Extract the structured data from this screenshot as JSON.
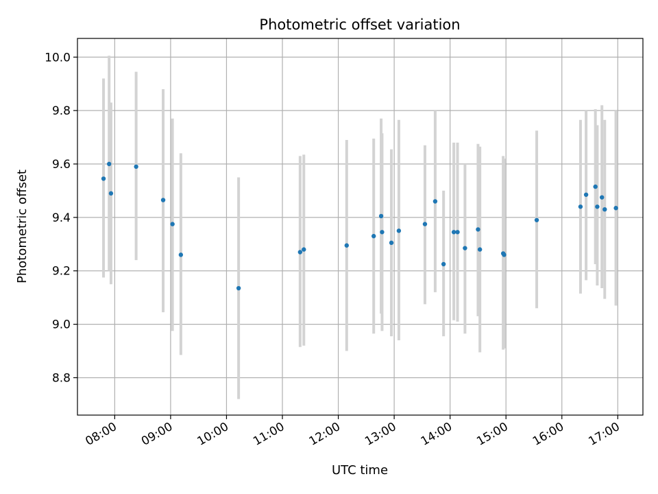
{
  "chart_data": {
    "type": "scatter",
    "title": "Photometric offset variation",
    "xlabel": "UTC time",
    "ylabel": "Photometric offset",
    "x_tick_labels": [
      "08:00",
      "09:00",
      "10:00",
      "11:00",
      "12:00",
      "13:00",
      "14:00",
      "15:00",
      "16:00",
      "17:00"
    ],
    "y_tick_labels": [
      "8.8",
      "9.0",
      "9.2",
      "9.4",
      "9.6",
      "9.8",
      "10.0"
    ],
    "y_ticks": [
      8.8,
      9.0,
      9.2,
      9.4,
      9.6,
      9.8,
      10.0
    ],
    "xlim": [
      "07:20",
      "17:27"
    ],
    "ylim": [
      8.66,
      10.07
    ],
    "grid": true,
    "point_color": "#1f77b4",
    "errorbar_color": "#d3d3d3",
    "series": [
      {
        "points": [
          {
            "t": "07:48",
            "y": 9.545,
            "lo": 9.175,
            "hi": 9.92
          },
          {
            "t": "07:54",
            "y": 9.6,
            "lo": 9.2,
            "hi": 10.005
          },
          {
            "t": "07:56",
            "y": 9.49,
            "lo": 9.15,
            "hi": 9.83
          },
          {
            "t": "08:23",
            "y": 9.59,
            "lo": 9.24,
            "hi": 9.945
          },
          {
            "t": "08:52",
            "y": 9.465,
            "lo": 9.045,
            "hi": 9.88
          },
          {
            "t": "09:02",
            "y": 9.375,
            "lo": 8.975,
            "hi": 9.77
          },
          {
            "t": "09:11",
            "y": 9.26,
            "lo": 8.885,
            "hi": 9.64
          },
          {
            "t": "10:13",
            "y": 9.135,
            "lo": 8.72,
            "hi": 9.55
          },
          {
            "t": "11:19",
            "y": 9.27,
            "lo": 8.915,
            "hi": 9.63
          },
          {
            "t": "11:23",
            "y": 9.28,
            "lo": 8.92,
            "hi": 9.635
          },
          {
            "t": "12:09",
            "y": 9.295,
            "lo": 8.9,
            "hi": 9.69
          },
          {
            "t": "12:38",
            "y": 9.33,
            "lo": 8.965,
            "hi": 9.695
          },
          {
            "t": "12:46",
            "y": 9.405,
            "lo": 9.04,
            "hi": 9.77
          },
          {
            "t": "12:47",
            "y": 9.345,
            "lo": 8.975,
            "hi": 9.715
          },
          {
            "t": "12:57",
            "y": 9.305,
            "lo": 8.955,
            "hi": 9.655
          },
          {
            "t": "13:05",
            "y": 9.35,
            "lo": 8.94,
            "hi": 9.765
          },
          {
            "t": "13:33",
            "y": 9.375,
            "lo": 9.075,
            "hi": 9.67
          },
          {
            "t": "13:44",
            "y": 9.46,
            "lo": 9.12,
            "hi": 9.8
          },
          {
            "t": "13:53",
            "y": 9.225,
            "lo": 8.955,
            "hi": 9.5
          },
          {
            "t": "14:04",
            "y": 9.345,
            "lo": 9.015,
            "hi": 9.68
          },
          {
            "t": "14:08",
            "y": 9.345,
            "lo": 9.01,
            "hi": 9.68
          },
          {
            "t": "14:16",
            "y": 9.285,
            "lo": 8.965,
            "hi": 9.6
          },
          {
            "t": "14:30",
            "y": 9.355,
            "lo": 9.03,
            "hi": 9.675
          },
          {
            "t": "14:32",
            "y": 9.28,
            "lo": 8.895,
            "hi": 9.665
          },
          {
            "t": "14:57",
            "y": 9.265,
            "lo": 8.905,
            "hi": 9.63
          },
          {
            "t": "14:58",
            "y": 9.26,
            "lo": 8.91,
            "hi": 9.62
          },
          {
            "t": "15:33",
            "y": 9.39,
            "lo": 9.06,
            "hi": 9.725
          },
          {
            "t": "16:20",
            "y": 9.44,
            "lo": 9.115,
            "hi": 9.765
          },
          {
            "t": "16:26",
            "y": 9.485,
            "lo": 9.165,
            "hi": 9.8
          },
          {
            "t": "16:36",
            "y": 9.515,
            "lo": 9.225,
            "hi": 9.805
          },
          {
            "t": "16:38",
            "y": 9.44,
            "lo": 9.145,
            "hi": 9.745
          },
          {
            "t": "16:43",
            "y": 9.475,
            "lo": 9.135,
            "hi": 9.82
          },
          {
            "t": "16:46",
            "y": 9.43,
            "lo": 9.095,
            "hi": 9.765
          },
          {
            "t": "16:58",
            "y": 9.435,
            "lo": 9.07,
            "hi": 9.8
          }
        ]
      }
    ]
  }
}
